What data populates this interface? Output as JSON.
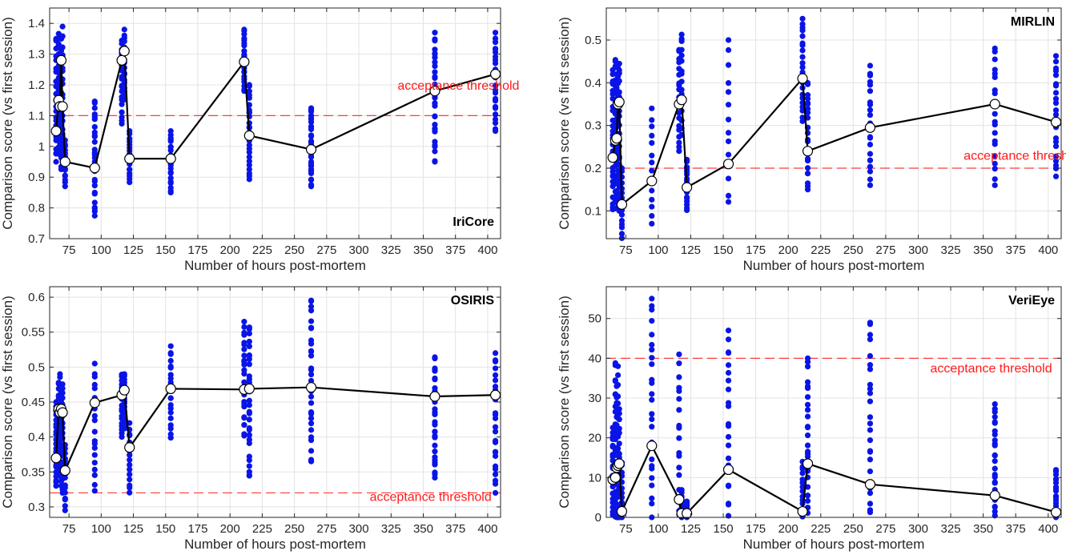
{
  "figure": {
    "accent_point_color": "#0a14e6",
    "mean_line_color": "#000000",
    "threshold_color": "#ff3b3b",
    "grid": true
  },
  "chart_data": [
    {
      "type": "scatter",
      "title": "IriCore",
      "xlabel": "Number of hours post-mortem",
      "ylabel": "Comparison score (vs first session)",
      "xlim": [
        60,
        410
      ],
      "ylim": [
        0.7,
        1.45
      ],
      "xticks": [
        75,
        100,
        125,
        150,
        175,
        200,
        225,
        250,
        275,
        300,
        325,
        350,
        375,
        400
      ],
      "yticks": [
        0.7,
        0.8,
        0.9,
        1,
        1.1,
        1.2,
        1.3,
        1.4
      ],
      "threshold": {
        "value": 1.1,
        "label": "acceptance threshold",
        "label_x": 330,
        "label_y": 1.185,
        "label_anchor": "start"
      },
      "mean": {
        "x": [
          65,
          67,
          68,
          69,
          70,
          72,
          95,
          116,
          118,
          122,
          154,
          211,
          215,
          263,
          359,
          406
        ],
        "y": [
          1.05,
          1.15,
          1.13,
          1.28,
          1.13,
          0.95,
          0.93,
          1.28,
          1.31,
          0.96,
          0.96,
          1.275,
          1.035,
          0.99,
          1.18,
          1.235
        ]
      },
      "columns": [
        {
          "x": 65,
          "min": 0.95,
          "max": 1.35,
          "n": 26
        },
        {
          "x": 67,
          "min": 0.98,
          "max": 1.37,
          "n": 26
        },
        {
          "x": 68,
          "min": 0.97,
          "max": 1.3,
          "n": 22
        },
        {
          "x": 69,
          "min": 0.92,
          "max": 1.35,
          "n": 22
        },
        {
          "x": 70,
          "min": 0.94,
          "max": 1.39,
          "n": 22
        },
        {
          "x": 72,
          "min": 0.87,
          "max": 1.02,
          "n": 16
        },
        {
          "x": 95,
          "min": 0.77,
          "max": 1.15,
          "n": 28
        },
        {
          "x": 116,
          "min": 1.07,
          "max": 1.35,
          "n": 20
        },
        {
          "x": 118,
          "min": 1.15,
          "max": 1.38,
          "n": 18
        },
        {
          "x": 122,
          "min": 0.88,
          "max": 1.05,
          "n": 18
        },
        {
          "x": 154,
          "min": 0.85,
          "max": 1.05,
          "n": 22
        },
        {
          "x": 211,
          "min": 1.18,
          "max": 1.38,
          "n": 22
        },
        {
          "x": 215,
          "min": 0.89,
          "max": 1.2,
          "n": 26
        },
        {
          "x": 263,
          "min": 0.87,
          "max": 1.13,
          "n": 30
        },
        {
          "x": 359,
          "min": 0.95,
          "max": 1.37,
          "n": 30
        },
        {
          "x": 406,
          "min": 1.05,
          "max": 1.37,
          "n": 28
        }
      ]
    },
    {
      "type": "scatter",
      "title": "MIRLIN",
      "xlabel": "Number of hours post-mortem",
      "ylabel": "Comparison score (vs first session)",
      "xlim": [
        60,
        410
      ],
      "ylim": [
        0.035,
        0.575
      ],
      "xticks": [
        75,
        100,
        125,
        150,
        175,
        200,
        225,
        250,
        275,
        300,
        325,
        350,
        375,
        400
      ],
      "yticks": [
        0.1,
        0.2,
        0.3,
        0.4,
        0.5
      ],
      "threshold": {
        "value": 0.2,
        "label": "acceptance threshold",
        "label_x": 335,
        "label_y": 0.22,
        "label_anchor": "start"
      },
      "mean": {
        "x": [
          65,
          67,
          68,
          69,
          70,
          72,
          95,
          116,
          118,
          122,
          154,
          211,
          215,
          263,
          359,
          406
        ],
        "y": [
          0.225,
          0.265,
          0.27,
          0.35,
          0.355,
          0.115,
          0.17,
          0.35,
          0.36,
          0.155,
          0.21,
          0.41,
          0.24,
          0.295,
          0.35,
          0.308
        ]
      },
      "columns": [
        {
          "x": 65,
          "min": 0.1,
          "max": 0.43,
          "n": 28
        },
        {
          "x": 67,
          "min": 0.1,
          "max": 0.46,
          "n": 26
        },
        {
          "x": 68,
          "min": 0.12,
          "max": 0.42,
          "n": 22
        },
        {
          "x": 69,
          "min": 0.11,
          "max": 0.44,
          "n": 22
        },
        {
          "x": 70,
          "min": 0.1,
          "max": 0.45,
          "n": 22
        },
        {
          "x": 72,
          "min": 0.035,
          "max": 0.2,
          "n": 16
        },
        {
          "x": 95,
          "min": 0.07,
          "max": 0.34,
          "n": 14
        },
        {
          "x": 116,
          "min": 0.24,
          "max": 0.48,
          "n": 20
        },
        {
          "x": 118,
          "min": 0.27,
          "max": 0.52,
          "n": 18
        },
        {
          "x": 122,
          "min": 0.1,
          "max": 0.22,
          "n": 18
        },
        {
          "x": 154,
          "min": 0.11,
          "max": 0.5,
          "n": 14
        },
        {
          "x": 211,
          "min": 0.31,
          "max": 0.55,
          "n": 22
        },
        {
          "x": 215,
          "min": 0.15,
          "max": 0.4,
          "n": 24
        },
        {
          "x": 263,
          "min": 0.16,
          "max": 0.44,
          "n": 22
        },
        {
          "x": 359,
          "min": 0.16,
          "max": 0.49,
          "n": 20
        },
        {
          "x": 406,
          "min": 0.18,
          "max": 0.47,
          "n": 22
        }
      ]
    },
    {
      "type": "scatter",
      "title": "OSIRIS",
      "xlabel": "Number of hours post-mortem",
      "ylabel": "Comparison score (vs first session)",
      "xlim": [
        60,
        410
      ],
      "ylim": [
        0.285,
        0.615
      ],
      "xticks": [
        75,
        100,
        125,
        150,
        175,
        200,
        225,
        250,
        275,
        300,
        325,
        350,
        375,
        400
      ],
      "yticks": [
        0.3,
        0.35,
        0.4,
        0.45,
        0.5,
        0.55,
        0.6
      ],
      "threshold": {
        "value": 0.32,
        "label": "acceptance threshold",
        "label_x": 403,
        "label_y": 0.3085,
        "label_anchor": "end"
      },
      "mean": {
        "x": [
          65,
          67,
          68,
          69,
          70,
          72,
          95,
          116,
          118,
          122,
          154,
          211,
          215,
          263,
          359,
          406
        ],
        "y": [
          0.37,
          0.44,
          0.435,
          0.44,
          0.435,
          0.352,
          0.449,
          0.46,
          0.467,
          0.385,
          0.469,
          0.468,
          0.469,
          0.471,
          0.458,
          0.46
        ]
      },
      "columns": [
        {
          "x": 65,
          "min": 0.33,
          "max": 0.45,
          "n": 24
        },
        {
          "x": 67,
          "min": 0.35,
          "max": 0.48,
          "n": 24
        },
        {
          "x": 68,
          "min": 0.34,
          "max": 0.49,
          "n": 22
        },
        {
          "x": 69,
          "min": 0.33,
          "max": 0.47,
          "n": 20
        },
        {
          "x": 70,
          "min": 0.32,
          "max": 0.48,
          "n": 22
        },
        {
          "x": 72,
          "min": 0.295,
          "max": 0.39,
          "n": 16
        },
        {
          "x": 95,
          "min": 0.323,
          "max": 0.505,
          "n": 20
        },
        {
          "x": 116,
          "min": 0.4,
          "max": 0.49,
          "n": 18
        },
        {
          "x": 118,
          "min": 0.41,
          "max": 0.49,
          "n": 18
        },
        {
          "x": 122,
          "min": 0.32,
          "max": 0.42,
          "n": 16
        },
        {
          "x": 154,
          "min": 0.395,
          "max": 0.53,
          "n": 22
        },
        {
          "x": 211,
          "min": 0.4,
          "max": 0.565,
          "n": 26
        },
        {
          "x": 215,
          "min": 0.34,
          "max": 0.56,
          "n": 30
        },
        {
          "x": 263,
          "min": 0.365,
          "max": 0.6,
          "n": 30
        },
        {
          "x": 359,
          "min": 0.34,
          "max": 0.515,
          "n": 30
        },
        {
          "x": 406,
          "min": 0.32,
          "max": 0.52,
          "n": 26
        }
      ]
    },
    {
      "type": "scatter",
      "title": "VeriEye",
      "xlabel": "Number of hours post-mortem",
      "ylabel": "Comparison score (vs first session)",
      "xlim": [
        60,
        410
      ],
      "ylim": [
        0,
        58
      ],
      "xticks": [
        75,
        100,
        125,
        150,
        175,
        200,
        225,
        250,
        275,
        300,
        325,
        350,
        375,
        400
      ],
      "yticks": [
        0,
        10,
        20,
        30,
        40,
        50
      ],
      "threshold": {
        "value": 40,
        "label": "acceptance threshold",
        "label_x": 403,
        "label_y": 36.5,
        "label_anchor": "end"
      },
      "mean": {
        "x": [
          65,
          67,
          68,
          69,
          70,
          72,
          95,
          116,
          118,
          122,
          154,
          211,
          215,
          263,
          359,
          406
        ],
        "y": [
          9.5,
          10,
          12.5,
          13,
          13.5,
          1.5,
          18,
          4.5,
          1,
          1,
          12,
          1.5,
          13.5,
          8.3,
          5.5,
          1.3
        ]
      },
      "columns": [
        {
          "x": 65,
          "min": 0,
          "max": 23,
          "n": 22
        },
        {
          "x": 67,
          "min": 0,
          "max": 39,
          "n": 22
        },
        {
          "x": 68,
          "min": 0,
          "max": 33,
          "n": 18
        },
        {
          "x": 69,
          "min": 0,
          "max": 38,
          "n": 18
        },
        {
          "x": 70,
          "min": 0,
          "max": 28,
          "n": 16
        },
        {
          "x": 72,
          "min": 0,
          "max": 14,
          "n": 12
        },
        {
          "x": 95,
          "min": 0,
          "max": 55,
          "n": 26
        },
        {
          "x": 116,
          "min": 0,
          "max": 41,
          "n": 18
        },
        {
          "x": 118,
          "min": 0,
          "max": 7,
          "n": 10
        },
        {
          "x": 122,
          "min": 0,
          "max": 4,
          "n": 10
        },
        {
          "x": 154,
          "min": 0,
          "max": 47,
          "n": 22
        },
        {
          "x": 211,
          "min": 0,
          "max": 14,
          "n": 14
        },
        {
          "x": 215,
          "min": 0,
          "max": 40,
          "n": 26
        },
        {
          "x": 263,
          "min": 0,
          "max": 50,
          "n": 24
        },
        {
          "x": 359,
          "min": 0,
          "max": 29,
          "n": 26
        },
        {
          "x": 406,
          "min": 0,
          "max": 12,
          "n": 18
        }
      ]
    }
  ]
}
